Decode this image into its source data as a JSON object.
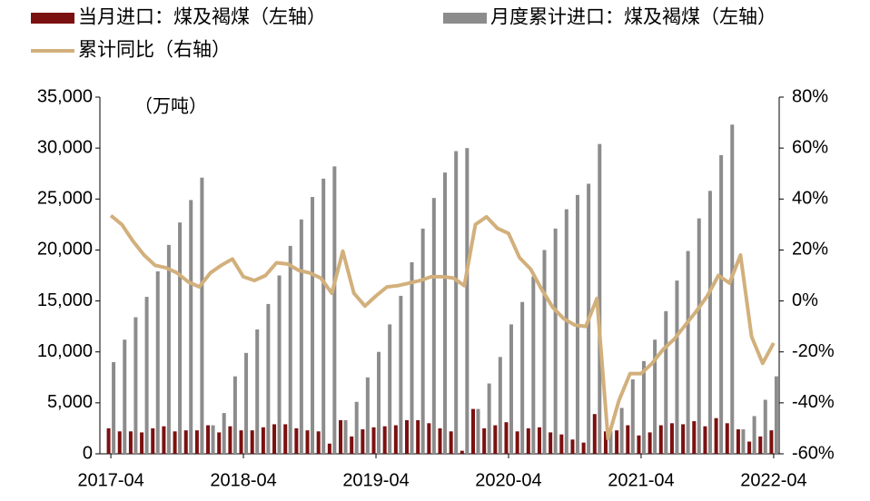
{
  "chart_data": {
    "type": "bar-line",
    "annotation": "（万吨）",
    "categories": [
      "2017-04",
      null,
      null,
      null,
      null,
      null,
      null,
      null,
      null,
      null,
      null,
      null,
      "2018-04",
      null,
      null,
      null,
      null,
      null,
      null,
      null,
      null,
      null,
      null,
      null,
      "2019-04",
      null,
      null,
      null,
      null,
      null,
      null,
      null,
      null,
      null,
      null,
      null,
      "2020-04",
      null,
      null,
      null,
      null,
      null,
      null,
      null,
      null,
      null,
      null,
      null,
      "2021-04",
      null,
      null,
      null,
      null,
      null,
      null,
      null,
      null,
      null,
      null,
      null,
      "2022-04"
    ],
    "series": [
      {
        "name": "当月进口：煤及褐煤（左轴）",
        "type": "bar",
        "color": "#7b1010",
        "values": [
          2500,
          2200,
          2200,
          2100,
          2500,
          2700,
          2200,
          2300,
          2300,
          2800,
          2100,
          2700,
          2300,
          2300,
          2600,
          2900,
          2900,
          2500,
          2300,
          2200,
          1000,
          3300,
          1700,
          2400,
          2600,
          2700,
          2800,
          3300,
          3300,
          3000,
          2500,
          2200,
          300,
          4400,
          2500,
          2800,
          3100,
          2200,
          2500,
          2600,
          2100,
          1900,
          1400,
          1100,
          3900,
          2200,
          2300,
          2800,
          1800,
          2100,
          2800,
          3000,
          2900,
          3200,
          2700,
          3500,
          3000,
          2400,
          1200,
          1700,
          2300
        ]
      },
      {
        "name": "月度累计进口：煤及褐煤（左轴）",
        "type": "bar",
        "color": "#8c8c8c",
        "values": [
          9000,
          11200,
          13400,
          15400,
          17900,
          20500,
          22700,
          24900,
          27100,
          2800,
          4000,
          7600,
          9900,
          12200,
          14700,
          17500,
          20400,
          23000,
          25200,
          27000,
          28200,
          3300,
          5100,
          7500,
          10000,
          12700,
          15500,
          18800,
          22100,
          25100,
          27600,
          29700,
          30000,
          4400,
          6900,
          9500,
          12700,
          14900,
          17400,
          20000,
          22100,
          24000,
          25400,
          26500,
          30400,
          2200,
          4500,
          7300,
          9100,
          11200,
          14000,
          17000,
          19900,
          23100,
          25800,
          29300,
          32300,
          2400,
          3700,
          5300,
          7600
        ]
      },
      {
        "name": "累计同比（右轴）",
        "type": "line",
        "axis": "y2",
        "color": "#d2b07c",
        "values": [
          33.5,
          30,
          23.5,
          18,
          14,
          13,
          11,
          7.5,
          5.5,
          11,
          14,
          16.5,
          9.5,
          8,
          10,
          15,
          14.5,
          12,
          11,
          9,
          3,
          19.5,
          3,
          -2,
          2,
          5.5,
          6,
          7,
          8,
          9.5,
          9.5,
          9,
          6,
          30,
          33,
          28.5,
          26.5,
          17,
          12.5,
          4.5,
          -2.5,
          -7,
          -9.5,
          -10,
          1,
          -54,
          -39,
          -28.5,
          -28.5,
          -24.5,
          -19,
          -15,
          -9.5,
          -4,
          2,
          10,
          7,
          18,
          -14,
          -24.5,
          -16.5
        ]
      }
    ],
    "ylim": [
      0,
      35000
    ],
    "yticks": [
      0,
      {
        "value": 5000,
        "label": "5,000"
      },
      {
        "value": 10000,
        "label": "10,000"
      },
      {
        "value": 15000,
        "label": "15,000"
      },
      {
        "value": 20000,
        "label": "20,000"
      },
      {
        "value": 25000,
        "label": "25,000"
      },
      {
        "value": 30000,
        "label": "30,000"
      },
      {
        "value": 35000,
        "label": "35,000"
      }
    ],
    "y2lim": [
      -60,
      80
    ],
    "y2ticks": [
      {
        "value": -60,
        "label": "-60%"
      },
      {
        "value": -40,
        "label": "-40%"
      },
      {
        "value": -20,
        "label": "-20%"
      },
      {
        "value": 0,
        "label": "0%"
      },
      {
        "value": 20,
        "label": "20%"
      },
      {
        "value": 40,
        "label": "40%"
      },
      {
        "value": 60,
        "label": "60%"
      },
      {
        "value": 80,
        "label": "80%"
      }
    ],
    "grid": false,
    "legend": "top"
  }
}
